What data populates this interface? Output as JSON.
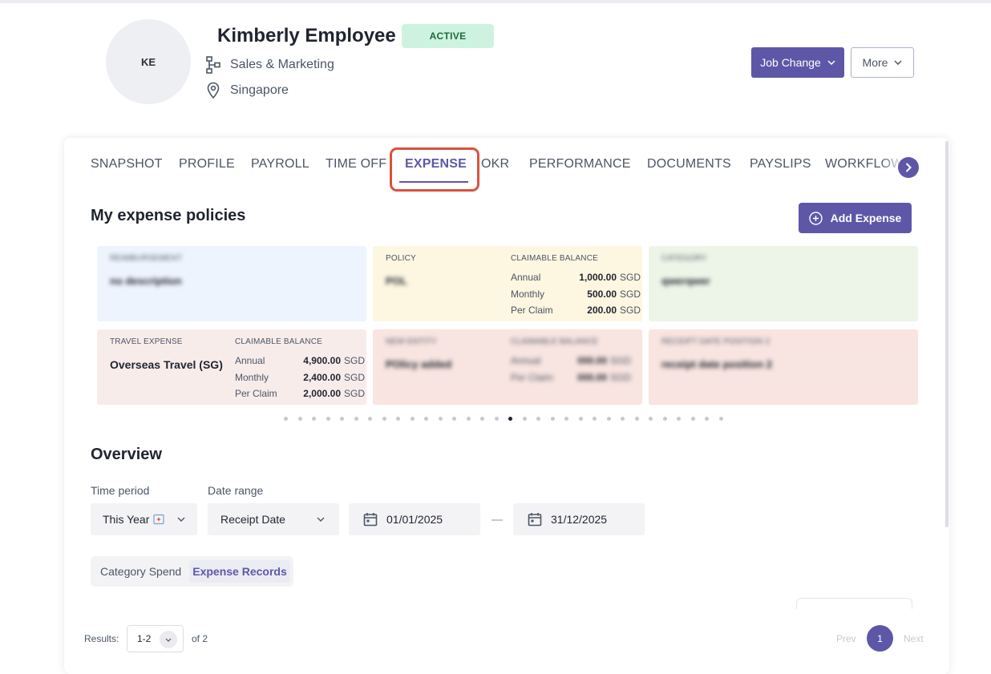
{
  "employee": {
    "initials": "KE",
    "name": "Kimberly Employee",
    "status": "ACTIVE",
    "department": "Sales & Marketing",
    "location": "Singapore"
  },
  "actions": {
    "job_change": "Job Change",
    "more": "More"
  },
  "tabs": [
    {
      "label": "SNAPSHOT"
    },
    {
      "label": "PROFILE"
    },
    {
      "label": "PAYROLL"
    },
    {
      "label": "TIME OFF"
    },
    {
      "label": "EXPENSE"
    },
    {
      "label": "OKR"
    },
    {
      "label": "PERFORMANCE"
    },
    {
      "label": "DOCUMENTS"
    },
    {
      "label": "PAYSLIPS"
    },
    {
      "label": "WORKFLOW"
    }
  ],
  "active_tab": "EXPENSE",
  "policies": {
    "title": "My expense policies",
    "add_button": "Add Expense",
    "tiles": [
      {
        "label": "REIMBURSEMENT",
        "value": "no description",
        "blurred": true
      },
      {
        "label": "POLICY",
        "value": "POL",
        "balance_label": "CLAIMABLE BALANCE",
        "rows": [
          {
            "key": "Annual",
            "amount": "1,000.00",
            "unit": "SGD"
          },
          {
            "key": "Monthly",
            "amount": "500.00",
            "unit": "SGD"
          },
          {
            "key": "Per Claim",
            "amount": "200.00",
            "unit": "SGD"
          }
        ]
      },
      {
        "label": "CATEGORY",
        "value": "qwerqwer",
        "blurred": true
      },
      {
        "label": "TRAVEL EXPENSE",
        "value": "Overseas Travel (SG)",
        "balance_label": "CLAIMABLE BALANCE",
        "rows": [
          {
            "key": "Annual",
            "amount": "4,900.00",
            "unit": "SGD"
          },
          {
            "key": "Monthly",
            "amount": "2,400.00",
            "unit": "SGD"
          },
          {
            "key": "Per Claim",
            "amount": "2,000.00",
            "unit": "SGD"
          }
        ]
      },
      {
        "label": "NEW ENTITY",
        "value": "POlicy added",
        "balance_label": "CLAIMABLE BALANCE",
        "blurred": true,
        "rows": [
          {
            "key": "Annual",
            "amount": "000.00",
            "unit": "SGD"
          },
          {
            "key": "Per Claim",
            "amount": "000.00",
            "unit": "SGD"
          }
        ]
      },
      {
        "label": "RECEIPT DATE POSITION 2",
        "value": "receipt date position 2",
        "blurred": true
      }
    ],
    "carousel_dots": 32,
    "carousel_active": 16
  },
  "overview": {
    "title": "Overview",
    "time_period_label": "Time period",
    "time_period_value": "This Year",
    "date_range_label": "Date range",
    "date_range_value": "Receipt Date",
    "start_date": "01/01/2025",
    "end_date": "31/12/2025",
    "segments": [
      "Category Spend",
      "Expense Records"
    ],
    "active_segment": "Expense Records"
  },
  "pagination": {
    "results_label": "Results:",
    "range": "1-2",
    "of_total": "of 2",
    "prev": "Prev",
    "current_page": "1",
    "next": "Next"
  },
  "colors": {
    "accent": "#5e57a8",
    "active_badge_bg": "#cdf3e0",
    "active_badge_text": "#1c6b3c",
    "highlight": "#d9523d"
  }
}
